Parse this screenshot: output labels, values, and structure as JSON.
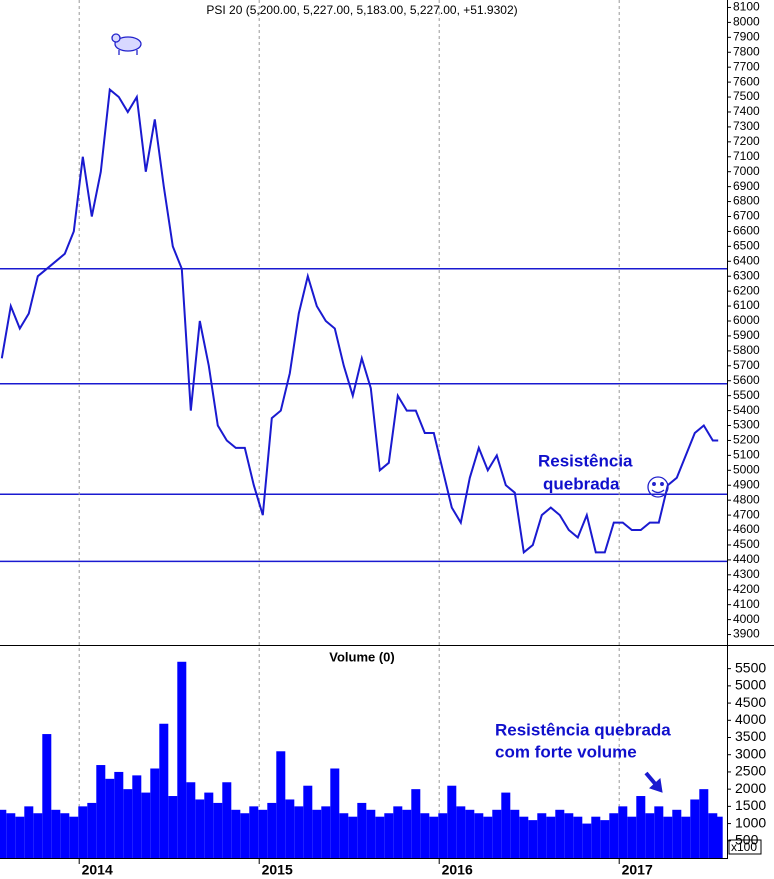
{
  "chart_data": [
    {
      "type": "line",
      "title": "PSI 20 (5,200.00, 5,227.00, 5,183.00, 5,227.00, +51.9302)",
      "x": [
        2013.57,
        2013.62,
        2013.67,
        2013.72,
        2013.77,
        2013.82,
        2013.87,
        2013.92,
        2013.97,
        2014.02,
        2014.07,
        2014.12,
        2014.17,
        2014.22,
        2014.27,
        2014.32,
        2014.37,
        2014.42,
        2014.47,
        2014.52,
        2014.57,
        2014.62,
        2014.67,
        2014.72,
        2014.77,
        2014.82,
        2014.87,
        2014.92,
        2014.97,
        2015.02,
        2015.07,
        2015.12,
        2015.17,
        2015.22,
        2015.27,
        2015.32,
        2015.37,
        2015.42,
        2015.47,
        2015.52,
        2015.57,
        2015.62,
        2015.67,
        2015.72,
        2015.77,
        2015.82,
        2015.87,
        2015.92,
        2015.97,
        2016.02,
        2016.07,
        2016.12,
        2016.17,
        2016.22,
        2016.27,
        2016.32,
        2016.37,
        2016.42,
        2016.47,
        2016.52,
        2016.57,
        2016.62,
        2016.67,
        2016.72,
        2016.77,
        2016.82,
        2016.87,
        2016.92,
        2016.97,
        2017.02,
        2017.07,
        2017.12,
        2017.17,
        2017.22,
        2017.27,
        2017.32,
        2017.37,
        2017.42,
        2017.47,
        2017.52,
        2017.55
      ],
      "series": [
        {
          "color": "#1a1ad0",
          "values": [
            5750,
            6100,
            5950,
            6050,
            6300,
            6350,
            6400,
            6450,
            6600,
            7100,
            6700,
            7000,
            7550,
            7500,
            7400,
            7500,
            7000,
            7350,
            6900,
            6500,
            6350,
            5400,
            6000,
            5700,
            5300,
            5200,
            5150,
            5150,
            4900,
            4700,
            5350,
            5400,
            5650,
            6050,
            6300,
            6100,
            6000,
            5950,
            5700,
            5500,
            5750,
            5550,
            5000,
            5050,
            5500,
            5400,
            5400,
            5250,
            5250,
            5000,
            4750,
            4650,
            4950,
            5150,
            5000,
            5100,
            4900,
            4850,
            4450,
            4500,
            4700,
            4750,
            4700,
            4600,
            4550,
            4700,
            4450,
            4450,
            4650,
            4650,
            4600,
            4600,
            4650,
            4650,
            4900,
            4950,
            5100,
            5250,
            5300,
            5200,
            5200
          ]
        }
      ],
      "xlim": [
        2013.56,
        2017.56
      ],
      "ylim": [
        3830,
        8150
      ],
      "yticks": [
        3900,
        4000,
        4100,
        4200,
        4300,
        4400,
        4500,
        4600,
        4700,
        4800,
        4900,
        5000,
        5100,
        5200,
        5300,
        5400,
        5500,
        5600,
        5700,
        5800,
        5900,
        6000,
        6100,
        6200,
        6300,
        6400,
        6500,
        6600,
        6700,
        6800,
        6900,
        7000,
        7100,
        7200,
        7300,
        7400,
        7500,
        7600,
        7700,
        7800,
        7900,
        8000,
        8100
      ],
      "hlines": [
        6350,
        5580,
        4840,
        4390
      ],
      "annotations": [
        "Resistência",
        "quebrada"
      ]
    },
    {
      "type": "bar",
      "title": "Volume (0)",
      "unit_label": "x100",
      "color": "#0000ff",
      "x": [
        2013.57,
        2013.62,
        2013.67,
        2013.72,
        2013.77,
        2013.82,
        2013.87,
        2013.92,
        2013.97,
        2014.02,
        2014.07,
        2014.12,
        2014.17,
        2014.22,
        2014.27,
        2014.32,
        2014.37,
        2014.42,
        2014.47,
        2014.52,
        2014.57,
        2014.62,
        2014.67,
        2014.72,
        2014.77,
        2014.82,
        2014.87,
        2014.92,
        2014.97,
        2015.02,
        2015.07,
        2015.12,
        2015.17,
        2015.22,
        2015.27,
        2015.32,
        2015.37,
        2015.42,
        2015.47,
        2015.52,
        2015.57,
        2015.62,
        2015.67,
        2015.72,
        2015.77,
        2015.82,
        2015.87,
        2015.92,
        2015.97,
        2016.02,
        2016.07,
        2016.12,
        2016.17,
        2016.22,
        2016.27,
        2016.32,
        2016.37,
        2016.42,
        2016.47,
        2016.52,
        2016.57,
        2016.62,
        2016.67,
        2016.72,
        2016.77,
        2016.82,
        2016.87,
        2016.92,
        2016.97,
        2017.02,
        2017.07,
        2017.12,
        2017.17,
        2017.22,
        2017.27,
        2017.32,
        2017.37,
        2017.42,
        2017.47,
        2017.52,
        2017.55
      ],
      "values": [
        1400,
        1300,
        1200,
        1500,
        1300,
        3600,
        1400,
        1300,
        1200,
        1500,
        1600,
        2700,
        2300,
        2500,
        2000,
        2400,
        1900,
        2600,
        3900,
        1800,
        5700,
        2200,
        1700,
        1900,
        1600,
        2200,
        1400,
        1300,
        1500,
        1400,
        1600,
        3100,
        1700,
        1500,
        2100,
        1400,
        1500,
        2600,
        1300,
        1200,
        1600,
        1400,
        1200,
        1300,
        1500,
        1400,
        2000,
        1300,
        1200,
        1300,
        2100,
        1500,
        1400,
        1300,
        1200,
        1400,
        1900,
        1400,
        1200,
        1100,
        1300,
        1200,
        1400,
        1300,
        1200,
        1000,
        1200,
        1100,
        1300,
        1500,
        1200,
        1800,
        1300,
        1500,
        1200,
        1400,
        1200,
        1700,
        2000,
        1300,
        1200
      ],
      "xlim": [
        2013.56,
        2017.56
      ],
      "xticks": [
        2014,
        2015,
        2016,
        2017
      ],
      "ylim": [
        0,
        6100
      ],
      "yticks": [
        500,
        1000,
        1500,
        2000,
        2500,
        3000,
        3500,
        4000,
        4500,
        5000,
        5500
      ],
      "annotations": [
        "Resistência quebrada",
        "com forte volume"
      ]
    }
  ]
}
